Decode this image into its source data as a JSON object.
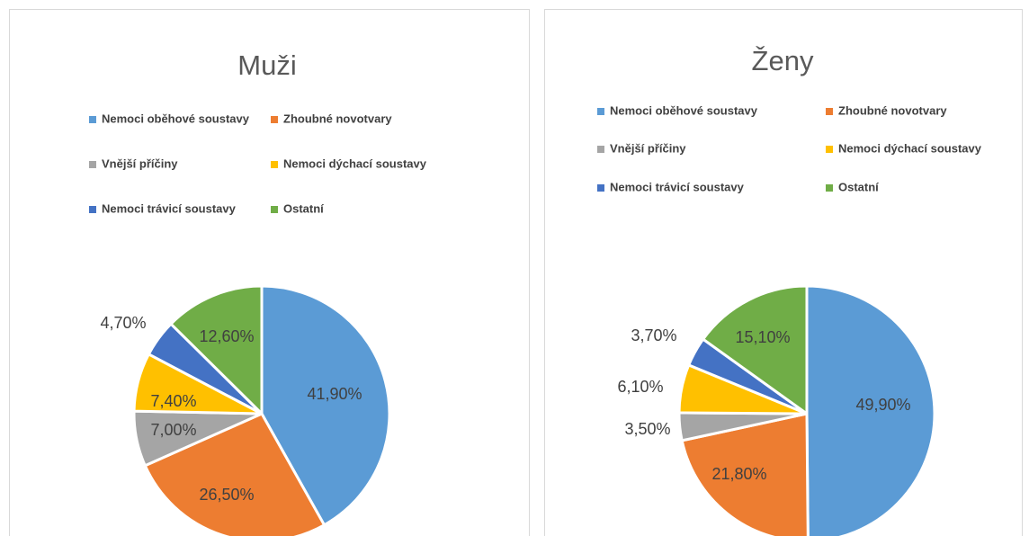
{
  "chart_data": [
    {
      "type": "pie",
      "title": "Muži",
      "categories": [
        "Nemoci oběhové soustavy",
        "Zhoubné novotvary",
        "Vnější příčiny",
        "Nemoci dýchací soustavy",
        "Nemoci trávicí soustavy",
        "Ostatní"
      ],
      "values": [
        41.9,
        26.5,
        7.0,
        7.4,
        4.7,
        12.6
      ],
      "value_labels": [
        "41,90%",
        "26,50%",
        "7,00%",
        "7,40%",
        "4,70%",
        "12,60%"
      ],
      "colors": [
        "#5b9bd5",
        "#ed7d31",
        "#a5a5a5",
        "#ffc000",
        "#4472c4",
        "#70ad47"
      ]
    },
    {
      "type": "pie",
      "title": "Ženy",
      "categories": [
        "Nemoci oběhové soustavy",
        "Zhoubné novotvary",
        "Vnější příčiny",
        "Nemoci dýchací soustavy",
        "Nemoci trávicí soustavy",
        "Ostatní"
      ],
      "values": [
        49.9,
        21.8,
        3.5,
        6.1,
        3.7,
        15.1
      ],
      "value_labels": [
        "49,90%",
        "21,80%",
        "3,50%",
        "6,10%",
        "3,70%",
        "15,10%"
      ],
      "colors": [
        "#5b9bd5",
        "#ed7d31",
        "#a5a5a5",
        "#ffc000",
        "#4472c4",
        "#70ad47"
      ]
    }
  ]
}
